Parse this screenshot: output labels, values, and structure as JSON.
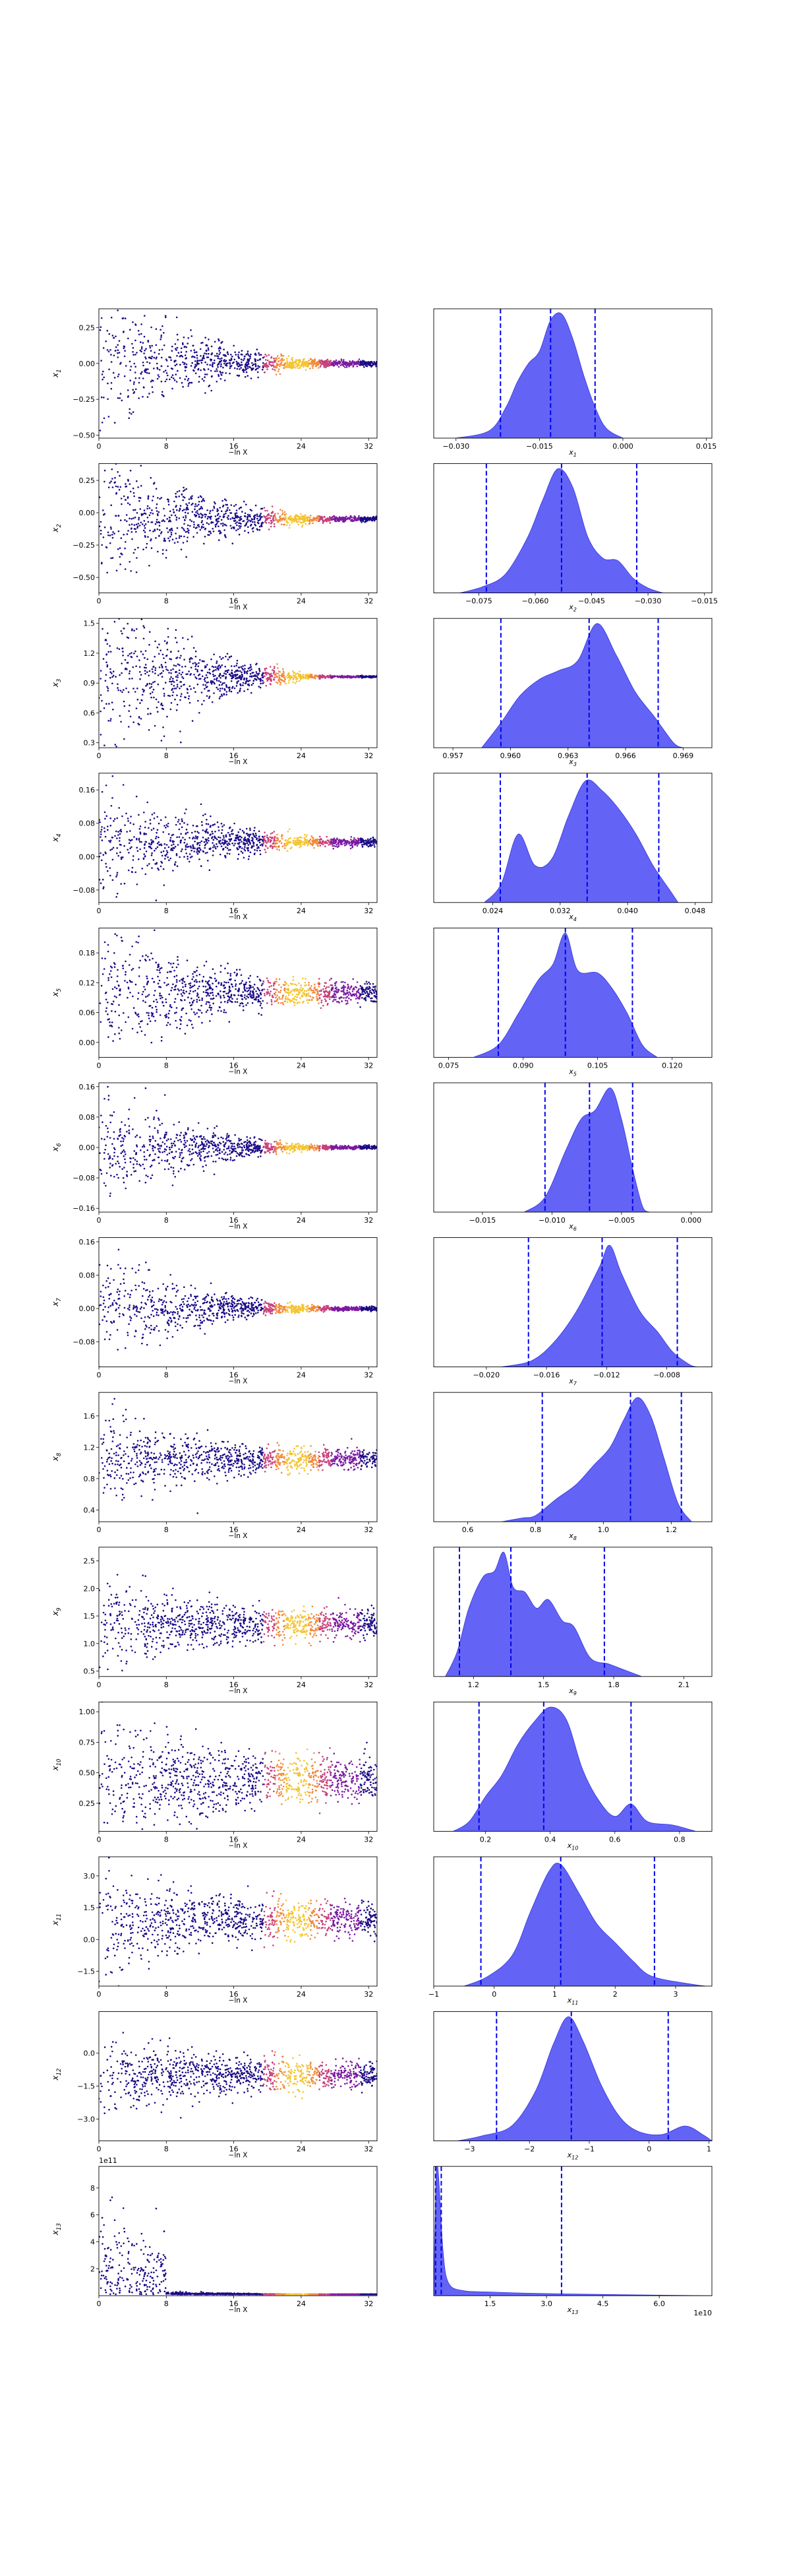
{
  "figure": {
    "scatter_xlabel": "−ln X",
    "scatter_xticks": [
      "0",
      "8",
      "16",
      "24",
      "32"
    ],
    "colors": {
      "scatter_base": "#1a0a86",
      "scatter_hot": "#f4c430",
      "kde_fill": "#5b5cf5",
      "kde_edge": "#3333dd",
      "dashed": "#0000ee"
    }
  },
  "chart_data": [
    {
      "type": "scatter",
      "ylabel": "x_1",
      "yticks": [
        "−0.50",
        "−0.25",
        "0.00",
        "0.25"
      ],
      "ylim": [
        -0.52,
        0.38
      ],
      "center": 0.0,
      "spread_start": 0.5,
      "spread_end": 0.02,
      "kde": {
        "type": "area",
        "xlabel": "x_1",
        "xticks": [
          "−0.030",
          "−0.015",
          "0.000",
          "0.015"
        ],
        "xlim": [
          -0.034,
          0.016
        ],
        "dashed": [
          -0.022,
          -0.013,
          -0.005
        ],
        "curve": [
          [
            -0.03,
            0
          ],
          [
            -0.024,
            0.06
          ],
          [
            -0.021,
            0.25
          ],
          [
            -0.019,
            0.45
          ],
          [
            -0.017,
            0.6
          ],
          [
            -0.015,
            0.7
          ],
          [
            -0.013,
            0.95
          ],
          [
            -0.011,
            1.0
          ],
          [
            -0.009,
            0.8
          ],
          [
            -0.007,
            0.5
          ],
          [
            -0.005,
            0.25
          ],
          [
            -0.003,
            0.08
          ],
          [
            0.0,
            0
          ]
        ]
      }
    },
    {
      "type": "scatter",
      "ylabel": "x_2",
      "yticks": [
        "−0.50",
        "−0.25",
        "0.00",
        "0.25"
      ],
      "ylim": [
        -0.62,
        0.38
      ],
      "center": -0.05,
      "spread_start": 0.55,
      "spread_end": 0.02,
      "kde": {
        "type": "area",
        "xlabel": "x_2",
        "xticks": [
          "−0.075",
          "−0.060",
          "−0.045",
          "−0.030",
          "−0.015"
        ],
        "xlim": [
          -0.087,
          -0.013
        ],
        "dashed": [
          -0.073,
          -0.053,
          -0.033
        ],
        "curve": [
          [
            -0.08,
            0
          ],
          [
            -0.074,
            0.05
          ],
          [
            -0.068,
            0.15
          ],
          [
            -0.062,
            0.45
          ],
          [
            -0.058,
            0.75
          ],
          [
            -0.054,
            1.0
          ],
          [
            -0.05,
            0.85
          ],
          [
            -0.046,
            0.45
          ],
          [
            -0.042,
            0.28
          ],
          [
            -0.038,
            0.26
          ],
          [
            -0.034,
            0.12
          ],
          [
            -0.03,
            0.04
          ],
          [
            -0.026,
            0
          ]
        ]
      }
    },
    {
      "type": "scatter",
      "ylabel": "x_3",
      "yticks": [
        "0.3",
        "0.6",
        "0.9",
        "1.2",
        "1.5"
      ],
      "ylim": [
        0.25,
        1.55
      ],
      "center": 0.964,
      "spread_start": 0.9,
      "spread_end": 0.01,
      "kde": {
        "type": "area",
        "xlabel": "x_3",
        "xticks": [
          "0.957",
          "0.960",
          "0.963",
          "0.966",
          "0.969"
        ],
        "xlim": [
          0.956,
          0.9705
        ],
        "dashed": [
          0.9595,
          0.9641,
          0.9677
        ],
        "curve": [
          [
            0.9585,
            0
          ],
          [
            0.9595,
            0.2
          ],
          [
            0.9605,
            0.42
          ],
          [
            0.9615,
            0.55
          ],
          [
            0.9625,
            0.62
          ],
          [
            0.9635,
            0.7
          ],
          [
            0.9645,
            1.0
          ],
          [
            0.9655,
            0.75
          ],
          [
            0.9665,
            0.45
          ],
          [
            0.9675,
            0.25
          ],
          [
            0.9685,
            0.04
          ],
          [
            0.969,
            0
          ]
        ]
      }
    },
    {
      "type": "scatter",
      "ylabel": "x_4",
      "yticks": [
        "−0.08",
        "0.00",
        "0.08",
        "0.16"
      ],
      "ylim": [
        -0.11,
        0.2
      ],
      "center": 0.035,
      "spread_start": 0.14,
      "spread_end": 0.01,
      "kde": {
        "type": "area",
        "xlabel": "x_4",
        "xticks": [
          "0.024",
          "0.032",
          "0.040",
          "0.048"
        ],
        "xlim": [
          0.017,
          0.05
        ],
        "dashed": [
          0.0249,
          0.0352,
          0.0437
        ],
        "curve": [
          [
            0.023,
            0
          ],
          [
            0.025,
            0.15
          ],
          [
            0.027,
            0.55
          ],
          [
            0.029,
            0.3
          ],
          [
            0.031,
            0.35
          ],
          [
            0.033,
            0.7
          ],
          [
            0.035,
            0.98
          ],
          [
            0.037,
            0.9
          ],
          [
            0.039,
            0.75
          ],
          [
            0.041,
            0.55
          ],
          [
            0.043,
            0.3
          ],
          [
            0.045,
            0.1
          ],
          [
            0.046,
            0
          ]
        ]
      }
    },
    {
      "type": "scatter",
      "ylabel": "x_5",
      "yticks": [
        "0.00",
        "0.06",
        "0.12",
        "0.18"
      ],
      "ylim": [
        -0.03,
        0.23
      ],
      "center": 0.1,
      "spread_start": 0.12,
      "spread_end": 0.02,
      "kde": {
        "type": "area",
        "xlabel": "x_5",
        "xticks": [
          "0.075",
          "0.090",
          "0.105",
          "0.120"
        ],
        "xlim": [
          0.072,
          0.128
        ],
        "dashed": [
          0.085,
          0.0985,
          0.112
        ],
        "curve": [
          [
            0.08,
            0
          ],
          [
            0.085,
            0.1
          ],
          [
            0.089,
            0.35
          ],
          [
            0.093,
            0.62
          ],
          [
            0.096,
            0.75
          ],
          [
            0.0985,
            1.0
          ],
          [
            0.101,
            0.7
          ],
          [
            0.105,
            0.68
          ],
          [
            0.108,
            0.55
          ],
          [
            0.111,
            0.35
          ],
          [
            0.114,
            0.1
          ],
          [
            0.117,
            0
          ]
        ]
      }
    },
    {
      "type": "scatter",
      "ylabel": "x_6",
      "yticks": [
        "−0.16",
        "−0.08",
        "0.00",
        "0.08",
        "0.16"
      ],
      "ylim": [
        -0.17,
        0.17
      ],
      "center": 0.0,
      "spread_start": 0.14,
      "spread_end": 0.005,
      "kde": {
        "type": "area",
        "xlabel": "x_6",
        "xticks": [
          "−0.015",
          "−0.010",
          "−0.005",
          "0.000"
        ],
        "xlim": [
          -0.0185,
          0.0015
        ],
        "dashed": [
          -0.0105,
          -0.0073,
          -0.0042
        ],
        "curve": [
          [
            -0.012,
            0
          ],
          [
            -0.0105,
            0.12
          ],
          [
            -0.009,
            0.5
          ],
          [
            -0.0079,
            0.75
          ],
          [
            -0.0069,
            0.82
          ],
          [
            -0.0058,
            1.0
          ],
          [
            -0.005,
            0.75
          ],
          [
            -0.0042,
            0.35
          ],
          [
            -0.0035,
            0.05
          ],
          [
            -0.003,
            0
          ]
        ]
      }
    },
    {
      "type": "scatter",
      "ylabel": "x_7",
      "yticks": [
        "−0.08",
        "0.00",
        "0.08",
        "0.16"
      ],
      "ylim": [
        -0.14,
        0.17
      ],
      "center": 0.0,
      "spread_start": 0.12,
      "spread_end": 0.005,
      "kde": {
        "type": "area",
        "xlabel": "x_7",
        "xticks": [
          "−0.020",
          "−0.016",
          "−0.012",
          "−0.008"
        ],
        "xlim": [
          -0.0235,
          -0.005
        ],
        "dashed": [
          -0.0172,
          -0.0123,
          -0.0073
        ],
        "curve": [
          [
            -0.019,
            0
          ],
          [
            -0.017,
            0.05
          ],
          [
            -0.0155,
            0.2
          ],
          [
            -0.014,
            0.45
          ],
          [
            -0.0125,
            0.8
          ],
          [
            -0.0118,
            0.98
          ],
          [
            -0.011,
            0.75
          ],
          [
            -0.0098,
            0.45
          ],
          [
            -0.0086,
            0.28
          ],
          [
            -0.0076,
            0.12
          ],
          [
            -0.0065,
            0.02
          ],
          [
            -0.006,
            0
          ]
        ]
      }
    },
    {
      "type": "scatter",
      "ylabel": "x_8",
      "yticks": [
        "0.4",
        "0.8",
        "1.2",
        "1.6"
      ],
      "ylim": [
        0.25,
        1.9
      ],
      "center": 1.05,
      "spread_start": 0.5,
      "spread_end": 0.12,
      "kde": {
        "type": "area",
        "xlabel": "x_8",
        "xticks": [
          "0.6",
          "0.8",
          "1.0",
          "1.2"
        ],
        "xlim": [
          0.5,
          1.32
        ],
        "dashed": [
          0.82,
          1.08,
          1.23
        ],
        "curve": [
          [
            0.7,
            0
          ],
          [
            0.76,
            0.03
          ],
          [
            0.8,
            0.05
          ],
          [
            0.86,
            0.18
          ],
          [
            0.92,
            0.3
          ],
          [
            0.97,
            0.45
          ],
          [
            1.02,
            0.6
          ],
          [
            1.06,
            0.82
          ],
          [
            1.1,
            1.0
          ],
          [
            1.14,
            0.85
          ],
          [
            1.18,
            0.5
          ],
          [
            1.22,
            0.15
          ],
          [
            1.26,
            0
          ]
        ]
      }
    },
    {
      "type": "scatter",
      "ylabel": "x_9",
      "yticks": [
        "0.5",
        "1.0",
        "1.5",
        "2.0",
        "2.5"
      ],
      "ylim": [
        0.4,
        2.75
      ],
      "center": 1.35,
      "spread_start": 0.55,
      "spread_end": 0.25,
      "kde": {
        "type": "area",
        "xlabel": "x_9",
        "xticks": [
          "1.2",
          "1.5",
          "1.8",
          "2.1"
        ],
        "xlim": [
          1.03,
          2.22
        ],
        "dashed": [
          1.14,
          1.36,
          1.76
        ],
        "curve": [
          [
            1.08,
            0
          ],
          [
            1.13,
            0.2
          ],
          [
            1.18,
            0.55
          ],
          [
            1.24,
            0.8
          ],
          [
            1.29,
            0.85
          ],
          [
            1.33,
            1.0
          ],
          [
            1.37,
            0.72
          ],
          [
            1.42,
            0.68
          ],
          [
            1.47,
            0.55
          ],
          [
            1.52,
            0.62
          ],
          [
            1.58,
            0.45
          ],
          [
            1.63,
            0.4
          ],
          [
            1.7,
            0.15
          ],
          [
            1.78,
            0.1
          ],
          [
            1.85,
            0.05
          ],
          [
            1.92,
            0
          ]
        ]
      }
    },
    {
      "type": "scatter",
      "ylabel": "x_10",
      "yticks": [
        "0.25",
        "0.50",
        "0.75",
        "1.00"
      ],
      "ylim": [
        0.02,
        1.08
      ],
      "center": 0.45,
      "spread_start": 0.35,
      "spread_end": 0.18,
      "kde": {
        "type": "area",
        "xlabel": "x_10",
        "xticks": [
          "0.2",
          "0.4",
          "0.6",
          "0.8"
        ],
        "xlim": [
          0.04,
          0.9
        ],
        "dashed": [
          0.18,
          0.38,
          0.65
        ],
        "curve": [
          [
            0.1,
            0
          ],
          [
            0.15,
            0.08
          ],
          [
            0.2,
            0.28
          ],
          [
            0.25,
            0.45
          ],
          [
            0.3,
            0.7
          ],
          [
            0.35,
            0.88
          ],
          [
            0.4,
            1.0
          ],
          [
            0.45,
            0.9
          ],
          [
            0.5,
            0.5
          ],
          [
            0.55,
            0.25
          ],
          [
            0.6,
            0.12
          ],
          [
            0.65,
            0.22
          ],
          [
            0.7,
            0.08
          ],
          [
            0.78,
            0.05
          ],
          [
            0.85,
            0
          ]
        ]
      }
    },
    {
      "type": "scatter",
      "ylabel": "x_11",
      "yticks": [
        "−1.5",
        "0.0",
        "1.5",
        "3.0"
      ],
      "ylim": [
        -2.2,
        3.9
      ],
      "center": 0.9,
      "spread_start": 1.5,
      "spread_end": 0.8,
      "kde": {
        "type": "area",
        "xlabel": "x_11",
        "xticks": [
          "−1",
          "0",
          "1",
          "2",
          "3"
        ],
        "xlim": [
          -1.0,
          3.6
        ],
        "dashed": [
          -0.22,
          1.1,
          2.65
        ],
        "curve": [
          [
            -0.5,
            0
          ],
          [
            -0.1,
            0.08
          ],
          [
            0.3,
            0.25
          ],
          [
            0.6,
            0.6
          ],
          [
            0.9,
            0.92
          ],
          [
            1.1,
            0.98
          ],
          [
            1.4,
            0.75
          ],
          [
            1.7,
            0.5
          ],
          [
            2.0,
            0.35
          ],
          [
            2.3,
            0.2
          ],
          [
            2.6,
            0.08
          ],
          [
            3.2,
            0.02
          ],
          [
            3.5,
            0
          ]
        ]
      }
    },
    {
      "type": "scatter",
      "ylabel": "x_12",
      "yticks": [
        "−3.0",
        "−1.5",
        "0.0"
      ],
      "ylim": [
        -4.0,
        1.9
      ],
      "center": -1.0,
      "spread_start": 1.3,
      "spread_end": 0.6,
      "kde": {
        "type": "area",
        "xlabel": "x_12",
        "xticks": [
          "−3",
          "−2",
          "−1",
          "0",
          "1"
        ],
        "xlim": [
          -3.6,
          1.05
        ],
        "dashed": [
          -2.55,
          -1.3,
          0.32
        ],
        "curve": [
          [
            -3.2,
            0
          ],
          [
            -2.8,
            0.04
          ],
          [
            -2.3,
            0.12
          ],
          [
            -1.9,
            0.4
          ],
          [
            -1.6,
            0.78
          ],
          [
            -1.35,
            1.0
          ],
          [
            -1.1,
            0.8
          ],
          [
            -0.8,
            0.45
          ],
          [
            -0.5,
            0.2
          ],
          [
            -0.2,
            0.08
          ],
          [
            0.2,
            0.05
          ],
          [
            0.6,
            0.12
          ],
          [
            0.9,
            0.05
          ],
          [
            1.05,
            0
          ]
        ]
      }
    },
    {
      "type": "scatter",
      "ylabel": "x_13",
      "yticks": [
        "2",
        "4",
        "6",
        "8"
      ],
      "ylim": [
        0,
        9.6
      ],
      "offset_label": "1e11",
      "center": 0.1,
      "spread_start": 3.5,
      "spread_end": 0.05,
      "kde": {
        "type": "area",
        "xlabel": "x_13",
        "offset_label": "1e10",
        "xticks": [
          "1.5",
          "3.0",
          "4.5",
          "6.0"
        ],
        "xlim": [
          0,
          7.4
        ],
        "dashed": [
          0.05,
          0.2,
          3.4
        ],
        "curve": [
          [
            0.0,
            0
          ],
          [
            0.06,
            0.95
          ],
          [
            0.12,
            1.0
          ],
          [
            0.25,
            0.35
          ],
          [
            0.4,
            0.1
          ],
          [
            0.8,
            0.04
          ],
          [
            1.5,
            0.03
          ],
          [
            2.5,
            0.02
          ],
          [
            3.4,
            0.015
          ],
          [
            5.0,
            0.008
          ],
          [
            7.4,
            0
          ]
        ]
      }
    }
  ]
}
